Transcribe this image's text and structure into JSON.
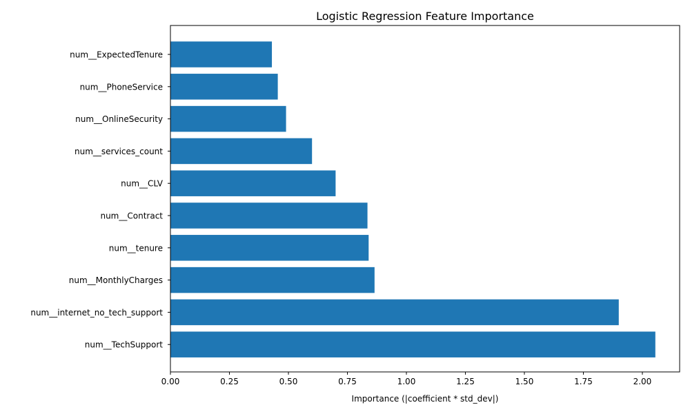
{
  "chart_data": {
    "type": "bar",
    "orientation": "horizontal",
    "title": "Logistic Regression Feature Importance",
    "xlabel": "Importance (|coefficient * std_dev|)",
    "ylabel": "",
    "categories": [
      "num__ExpectedTenure",
      "num__PhoneService",
      "num__OnlineSecurity",
      "num__services_count",
      "num__CLV",
      "num__Contract",
      "num__tenure",
      "num__MonthlyCharges",
      "num__internet_no_tech_support",
      "num__TechSupport"
    ],
    "values": [
      0.43,
      0.455,
      0.49,
      0.6,
      0.7,
      0.835,
      0.84,
      0.865,
      1.9,
      2.055
    ],
    "xlim": [
      0,
      2.158
    ],
    "xticks": [
      "0.00",
      "0.25",
      "0.50",
      "0.75",
      "1.00",
      "1.25",
      "1.50",
      "1.75",
      "2.00"
    ],
    "bar_color": "#1f77b4",
    "grid": false,
    "legend": false
  }
}
